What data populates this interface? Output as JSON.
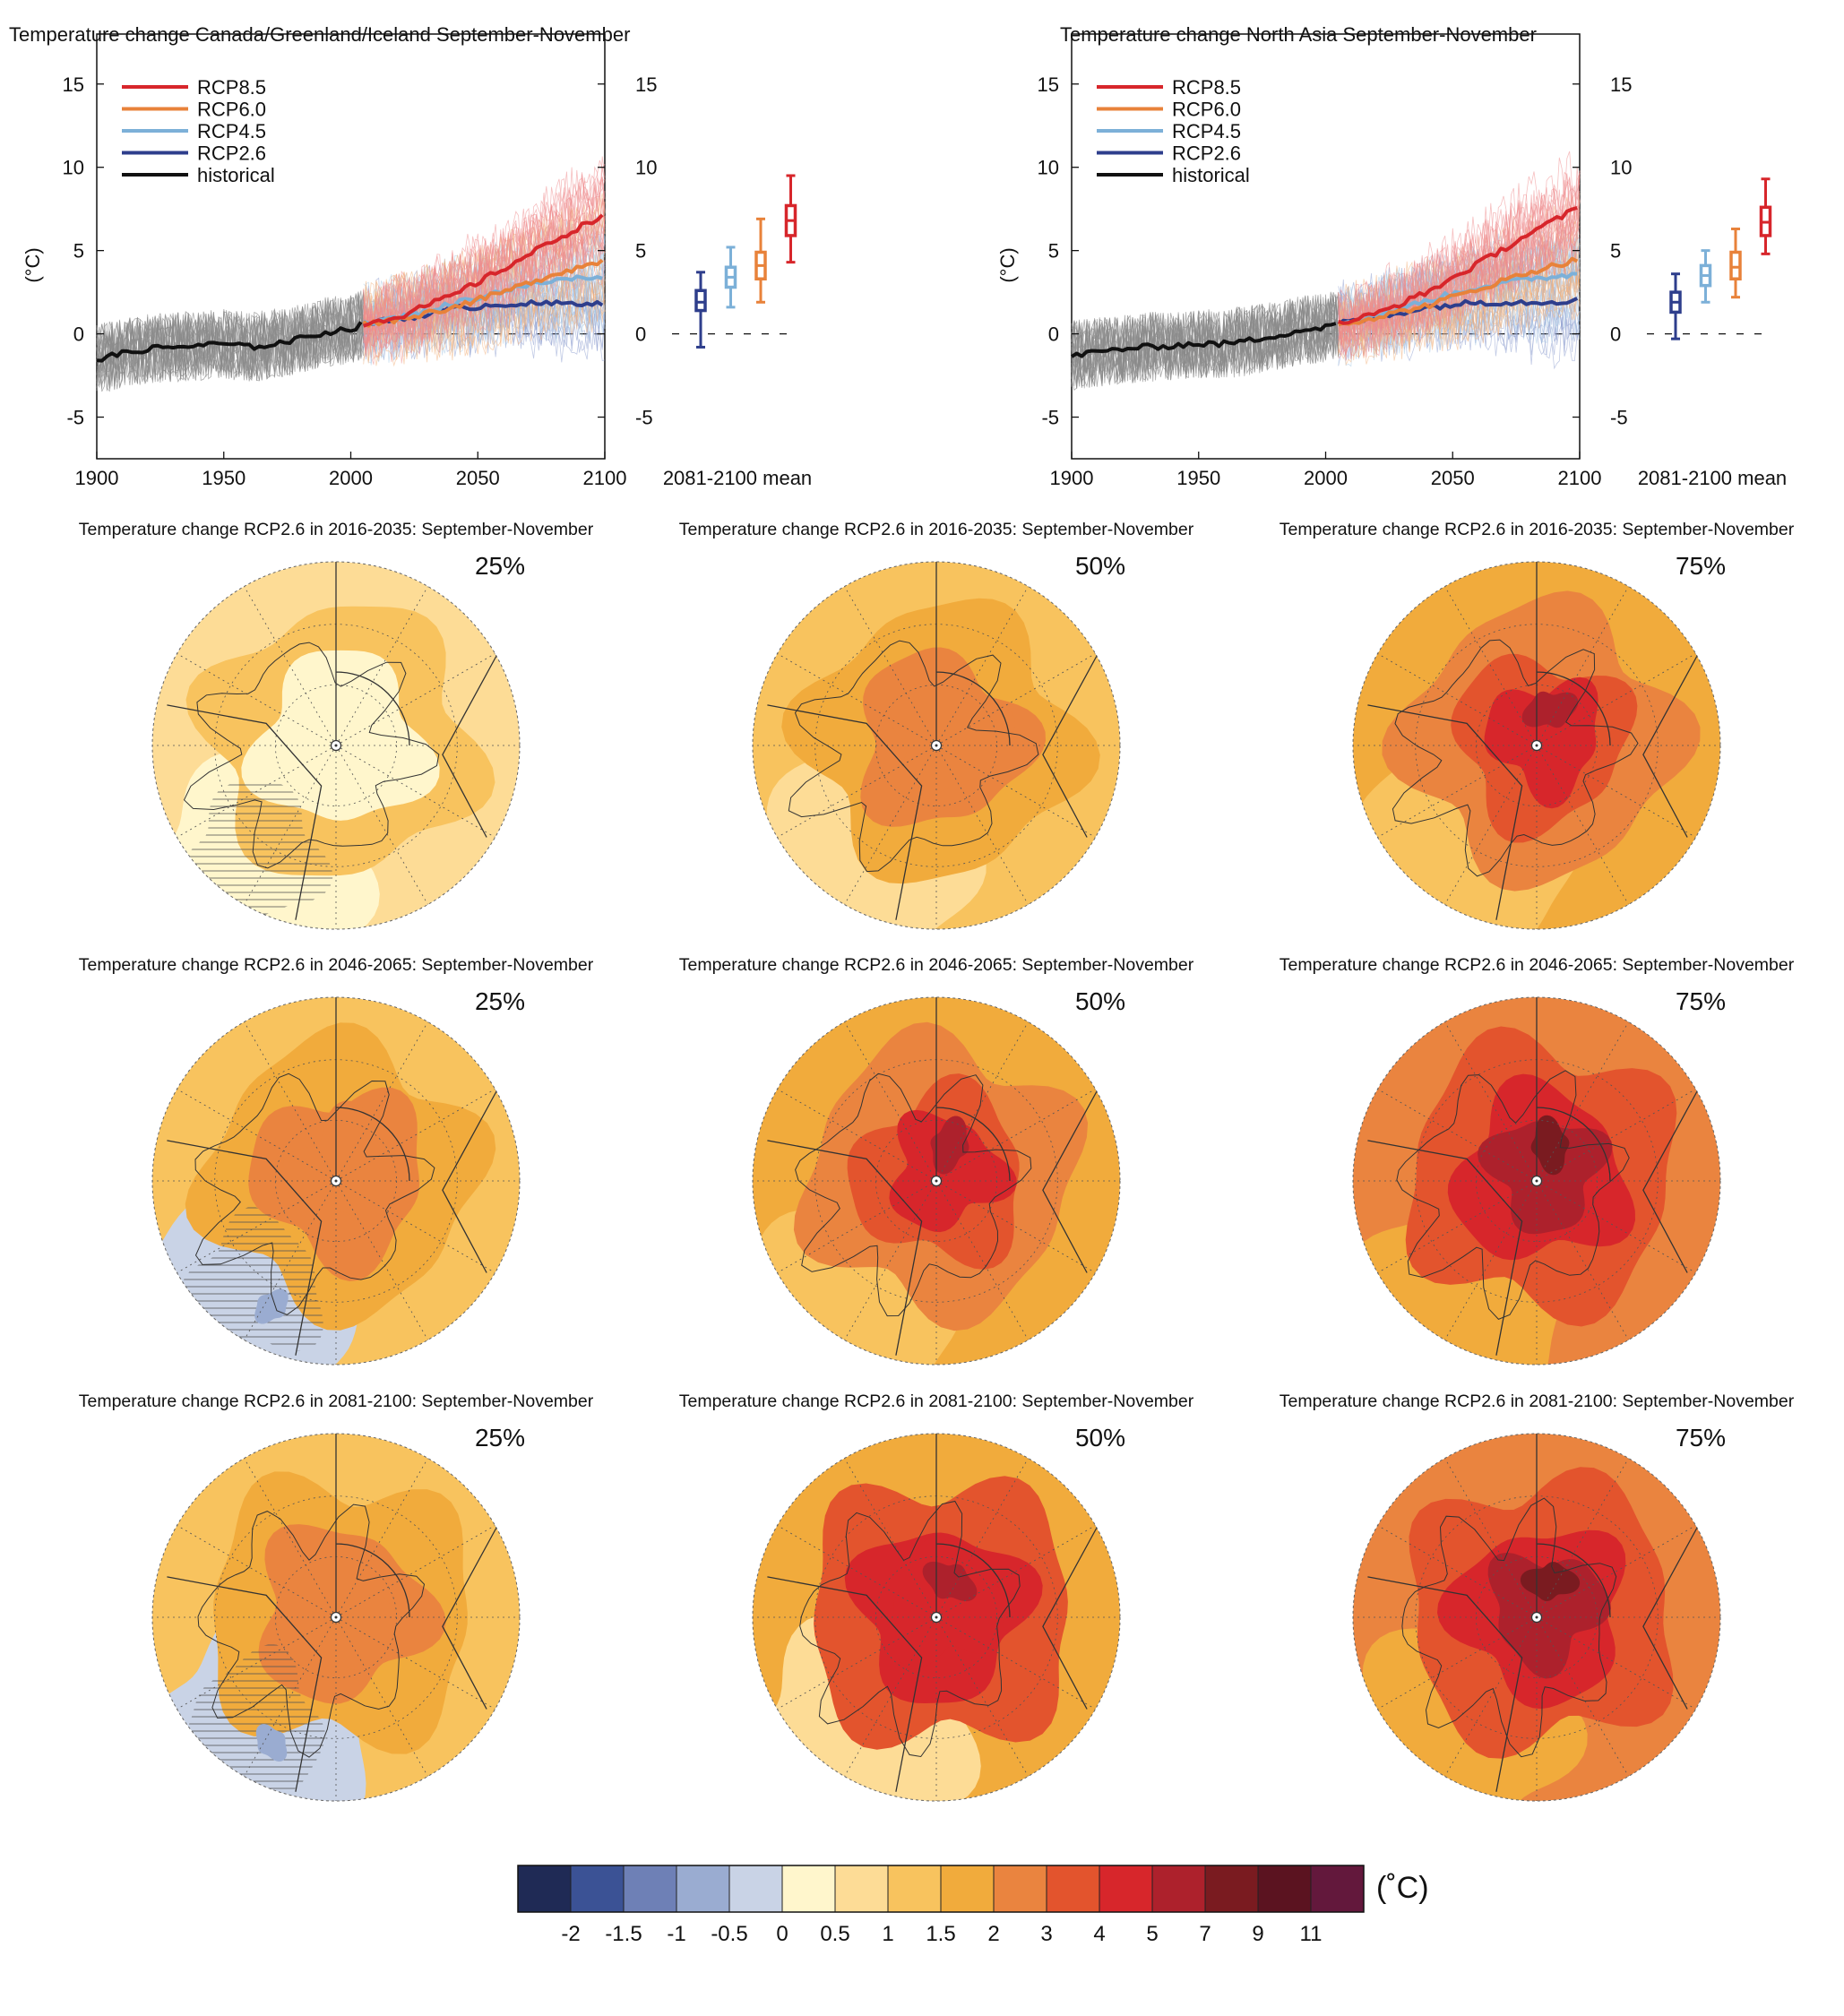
{
  "chart_data": [
    {
      "type": "line",
      "title": "Temperature change Canada/Greenland/Iceland September-November",
      "xlabel": "",
      "ylabel": "(°C)",
      "xlim": [
        1900,
        2100
      ],
      "ylim": [
        -7.5,
        18
      ],
      "xticks": [
        "1900",
        "1950",
        "2000",
        "2050",
        "2100"
      ],
      "yticks": [
        "-5",
        "0",
        "5",
        "10",
        "15"
      ],
      "legend": [
        "RCP8.5",
        "RCP6.0",
        "RCP4.5",
        "RCP2.6",
        "historical"
      ],
      "legend_position": "top-left",
      "series": [
        {
          "name": "historical",
          "color": "#111111",
          "x": [
            1900,
            1910,
            1920,
            1930,
            1940,
            1950,
            1960,
            1970,
            1980,
            1990,
            2000,
            2005
          ],
          "y": [
            -1.5,
            -1.2,
            -0.9,
            -0.8,
            -0.7,
            -0.6,
            -0.8,
            -0.6,
            -0.3,
            0.1,
            0.3,
            0.6
          ]
        },
        {
          "name": "RCP2.6",
          "color": "#2e3e8c",
          "x": [
            2005,
            2020,
            2040,
            2060,
            2080,
            2100
          ],
          "y": [
            0.6,
            0.9,
            1.5,
            1.8,
            1.8,
            1.9
          ]
        },
        {
          "name": "RCP4.5",
          "color": "#7cb0d8",
          "x": [
            2005,
            2020,
            2040,
            2060,
            2080,
            2100
          ],
          "y": [
            0.6,
            1.0,
            1.8,
            2.6,
            3.2,
            3.5
          ]
        },
        {
          "name": "RCP6.0",
          "color": "#e8823a",
          "x": [
            2005,
            2020,
            2040,
            2060,
            2080,
            2100
          ],
          "y": [
            0.6,
            0.9,
            1.6,
            2.5,
            3.6,
            4.4
          ]
        },
        {
          "name": "RCP8.5",
          "color": "#d7262b",
          "x": [
            2005,
            2020,
            2040,
            2060,
            2080,
            2100
          ],
          "y": [
            0.6,
            1.1,
            2.3,
            3.9,
            5.6,
            7.2
          ]
        }
      ],
      "box_axis_label": "2081-2100 mean",
      "boxes": [
        {
          "name": "RCP2.6",
          "color": "#2e3e8c",
          "min": -0.8,
          "q1": 1.4,
          "median": 1.9,
          "q3": 2.6,
          "max": 3.7
        },
        {
          "name": "RCP4.5",
          "color": "#7cb0d8",
          "min": 1.6,
          "q1": 2.8,
          "median": 3.4,
          "q3": 4.0,
          "max": 5.2
        },
        {
          "name": "RCP6.0",
          "color": "#e8823a",
          "min": 1.9,
          "q1": 3.3,
          "median": 4.1,
          "q3": 4.9,
          "max": 6.9
        },
        {
          "name": "RCP8.5",
          "color": "#d7262b",
          "min": 4.3,
          "q1": 5.9,
          "median": 6.8,
          "q3": 7.7,
          "max": 9.5
        }
      ]
    },
    {
      "type": "line",
      "title": "Temperature change North Asia September-November",
      "xlabel": "",
      "ylabel": "(°C)",
      "xlim": [
        1900,
        2100
      ],
      "ylim": [
        -7.5,
        18
      ],
      "xticks": [
        "1900",
        "1950",
        "2000",
        "2050",
        "2100"
      ],
      "yticks": [
        "-5",
        "0",
        "5",
        "10",
        "15"
      ],
      "legend": [
        "RCP8.5",
        "RCP6.0",
        "RCP4.5",
        "RCP2.6",
        "historical"
      ],
      "legend_position": "top-left",
      "series": [
        {
          "name": "historical",
          "color": "#111111",
          "x": [
            1900,
            1910,
            1920,
            1930,
            1940,
            1950,
            1960,
            1970,
            1980,
            1990,
            2000,
            2005
          ],
          "y": [
            -1.3,
            -1.1,
            -0.9,
            -0.8,
            -0.7,
            -0.6,
            -0.6,
            -0.4,
            -0.1,
            0.2,
            0.4,
            0.6
          ]
        },
        {
          "name": "RCP2.6",
          "color": "#2e3e8c",
          "x": [
            2005,
            2020,
            2040,
            2060,
            2080,
            2100
          ],
          "y": [
            0.6,
            1.0,
            1.6,
            1.9,
            1.9,
            2.0
          ]
        },
        {
          "name": "RCP4.5",
          "color": "#7cb0d8",
          "x": [
            2005,
            2020,
            2040,
            2060,
            2080,
            2100
          ],
          "y": [
            0.6,
            1.1,
            2.0,
            2.8,
            3.3,
            3.6
          ]
        },
        {
          "name": "RCP6.0",
          "color": "#e8823a",
          "x": [
            2005,
            2020,
            2040,
            2060,
            2080,
            2100
          ],
          "y": [
            0.6,
            1.0,
            1.7,
            2.7,
            3.7,
            4.5
          ]
        },
        {
          "name": "RCP8.5",
          "color": "#d7262b",
          "x": [
            2005,
            2020,
            2040,
            2060,
            2080,
            2100
          ],
          "y": [
            0.6,
            1.2,
            2.5,
            4.2,
            6.0,
            7.6
          ]
        }
      ],
      "box_axis_label": "2081-2100 mean",
      "boxes": [
        {
          "name": "RCP2.6",
          "color": "#2e3e8c",
          "min": -0.3,
          "q1": 1.3,
          "median": 1.9,
          "q3": 2.5,
          "max": 3.6
        },
        {
          "name": "RCP4.5",
          "color": "#7cb0d8",
          "min": 1.9,
          "q1": 2.9,
          "median": 3.5,
          "q3": 4.1,
          "max": 5.0
        },
        {
          "name": "RCP6.0",
          "color": "#e8823a",
          "min": 2.2,
          "q1": 3.3,
          "median": 4.0,
          "q3": 4.9,
          "max": 6.3
        },
        {
          "name": "RCP8.5",
          "color": "#d7262b",
          "min": 4.8,
          "q1": 5.9,
          "median": 6.7,
          "q3": 7.6,
          "max": 9.3
        }
      ]
    },
    {
      "type": "heatmap",
      "description_of_grid": "3x3 polar maps; rows are periods, columns are percentiles",
      "maps": [
        {
          "title": "Temperature change RCP2.6 in 2016-2035: September-November",
          "percentile": "25%",
          "center_level": 5,
          "mid_level": 7,
          "outer_level": 6,
          "cool_level": 5,
          "hatched": true
        },
        {
          "title": "Temperature change RCP2.6 in 2016-2035: September-November",
          "percentile": "50%",
          "center_level": 9,
          "mid_level": 8,
          "outer_level": 7,
          "cool_level": 6,
          "hatched": false
        },
        {
          "title": "Temperature change RCP2.6 in 2016-2035: September-November",
          "percentile": "75%",
          "center_level": 11,
          "mid_level": 9,
          "outer_level": 8,
          "cool_level": 7,
          "hatched": false
        },
        {
          "title": "Temperature change RCP2.6 in 2046-2065: September-November",
          "percentile": "25%",
          "center_level": 9,
          "mid_level": 8,
          "outer_level": 7,
          "cool_level": 4,
          "hatched": true
        },
        {
          "title": "Temperature change RCP2.6 in 2046-2065: September-November",
          "percentile": "50%",
          "center_level": 11,
          "mid_level": 9,
          "outer_level": 8,
          "cool_level": 7,
          "hatched": false
        },
        {
          "title": "Temperature change RCP2.6 in 2046-2065: September-November",
          "percentile": "75%",
          "center_level": 12,
          "mid_level": 10,
          "outer_level": 9,
          "cool_level": 8,
          "hatched": false
        },
        {
          "title": "Temperature change RCP2.6 in 2081-2100: September-November",
          "percentile": "25%",
          "center_level": 9,
          "mid_level": 8,
          "outer_level": 7,
          "cool_level": 4,
          "hatched": true
        },
        {
          "title": "Temperature change RCP2.6 in 2081-2100: September-November",
          "percentile": "50%",
          "center_level": 11,
          "mid_level": 10,
          "outer_level": 8,
          "cool_level": 6,
          "hatched": false
        },
        {
          "title": "Temperature change RCP2.6 in 2081-2100: September-November",
          "percentile": "75%",
          "center_level": 12,
          "mid_level": 10,
          "outer_level": 9,
          "cool_level": 8,
          "hatched": false
        }
      ]
    }
  ],
  "colorbar": {
    "unit": "(˚C)",
    "colors": [
      "#1f2a55",
      "#3b5295",
      "#6e80b6",
      "#9aacd1",
      "#c9d3e6",
      "#fff6cc",
      "#fddc96",
      "#f8c35e",
      "#f1ab3c",
      "#ea843f",
      "#e3542d",
      "#d7262b",
      "#ad212c",
      "#7a1b20",
      "#5b1320",
      "#63183c"
    ],
    "labels": [
      "-2",
      "-1.5",
      "-1",
      "-0.5",
      "0",
      "0.5",
      "1",
      "1.5",
      "2",
      "3",
      "4",
      "5",
      "7",
      "9",
      "11"
    ]
  }
}
